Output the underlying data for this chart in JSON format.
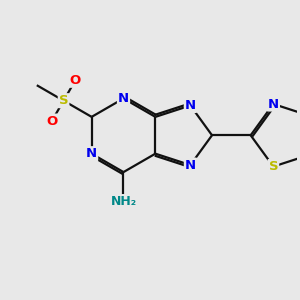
{
  "background_color": "#e8e8e8",
  "atom_colors": {
    "N": "#0000ee",
    "S_sulfonyl": "#bbbb00",
    "S_thiazole": "#bbbb00",
    "O": "#ff0000",
    "NH2": "#008888"
  },
  "bond_color": "#111111",
  "bond_lw": 1.6,
  "dbo": 0.07,
  "figsize": [
    3.0,
    3.0
  ],
  "dpi": 100,
  "xlim": [
    0,
    10
  ],
  "ylim": [
    0,
    10
  ]
}
